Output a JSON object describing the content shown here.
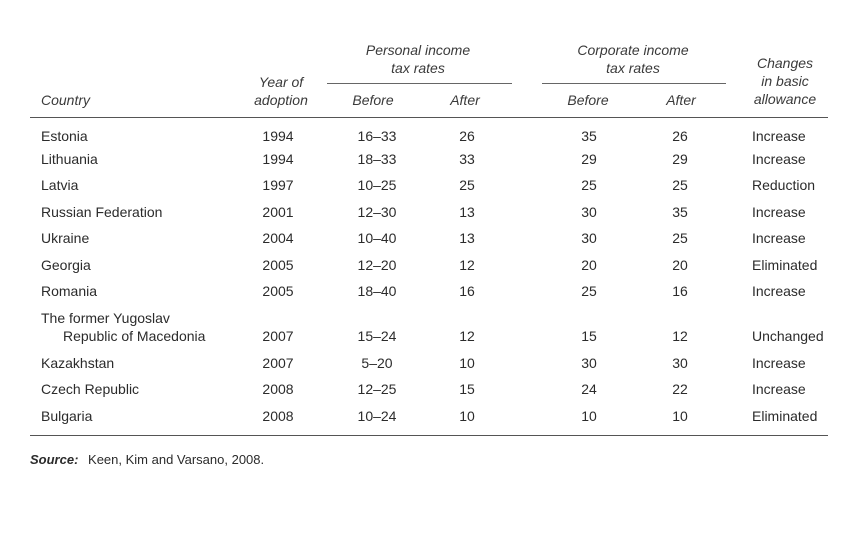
{
  "headers": {
    "country": "Country",
    "year_line1": "Year of",
    "year_line2": "adoption",
    "personal_line1": "Personal income",
    "personal_line2": "tax rates",
    "corporate_line1": "Corporate income",
    "corporate_line2": "tax rates",
    "changes_line1": "Changes",
    "changes_line2": "in basic",
    "changes_line3": "allowance",
    "before": "Before",
    "after": "After"
  },
  "rows": [
    {
      "country": [
        "Estonia"
      ],
      "year": "1994",
      "p_before": "16–33",
      "p_after": "26",
      "c_before": "35",
      "c_after": "26",
      "change": "Increase"
    },
    {
      "country": [
        "Lithuania"
      ],
      "year": "1994",
      "p_before": "18–33",
      "p_after": "33",
      "c_before": "29",
      "c_after": "29",
      "change": "Increase"
    },
    {
      "country": [
        "Latvia"
      ],
      "year": "1997",
      "p_before": "10–25",
      "p_after": "25",
      "c_before": "25",
      "c_after": "25",
      "change": "Reduction"
    },
    {
      "country": [
        "Russian Federation"
      ],
      "year": "2001",
      "p_before": "12–30",
      "p_after": "13",
      "c_before": "30",
      "c_after": "35",
      "change": "Increase"
    },
    {
      "country": [
        "Ukraine"
      ],
      "year": "2004",
      "p_before": "10–40",
      "p_after": "13",
      "c_before": "30",
      "c_after": "25",
      "change": "Increase"
    },
    {
      "country": [
        "Georgia"
      ],
      "year": "2005",
      "p_before": "12–20",
      "p_after": "12",
      "c_before": "20",
      "c_after": "20",
      "change": "Eliminated"
    },
    {
      "country": [
        "Romania"
      ],
      "year": "2005",
      "p_before": "18–40",
      "p_after": "16",
      "c_before": "25",
      "c_after": "16",
      "change": "Increase"
    },
    {
      "country": [
        "The former Yugoslav",
        "Republic of Macedonia"
      ],
      "year": "2007",
      "p_before": "15–24",
      "p_after": "12",
      "c_before": "15",
      "c_after": "12",
      "change": "Unchanged"
    },
    {
      "country": [
        "Kazakhstan"
      ],
      "year": "2007",
      "p_before": "5–20",
      "p_after": "10",
      "c_before": "30",
      "c_after": "30",
      "change": "Increase"
    },
    {
      "country": [
        "Czech Republic"
      ],
      "year": "2008",
      "p_before": "12–25",
      "p_after": "15",
      "c_before": "24",
      "c_after": "22",
      "change": "Increase"
    },
    {
      "country": [
        "Bulgaria"
      ],
      "year": "2008",
      "p_before": "10–24",
      "p_after": "10",
      "c_before": "10",
      "c_after": "10",
      "change": "Eliminated"
    }
  ],
  "source": {
    "label": "Source:",
    "text": "Keen, Kim and Varsano, 2008."
  }
}
